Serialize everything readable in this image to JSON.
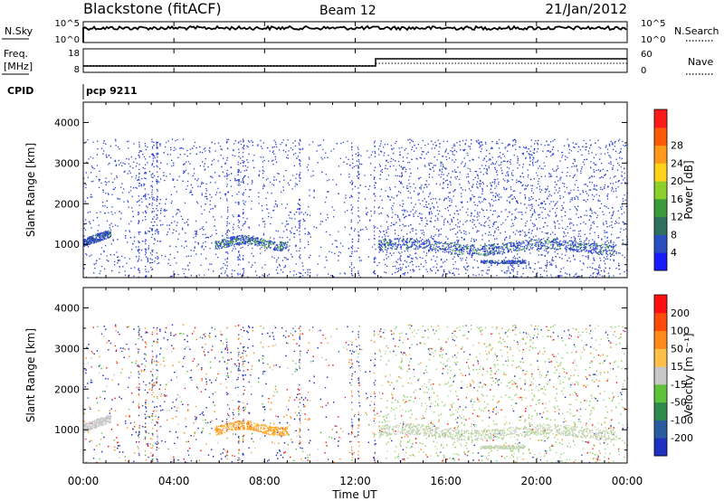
{
  "header": {
    "radar": "Blackstone (fitACF)",
    "beam": "Beam 12",
    "date": "21/Jan/2012"
  },
  "sky_panel": {
    "left_label": "N.Sky",
    "left_ticks": [
      "10^5",
      "10^0"
    ],
    "right_label": "N.Search",
    "right_ticks": [
      "10^5",
      "10^0"
    ]
  },
  "freq_panel": {
    "left_label_1": "Freq.",
    "left_label_2": "[MHz]",
    "left_ticks": [
      "18",
      "8"
    ],
    "right_label": "Nave",
    "right_ticks": [
      "60",
      "0"
    ]
  },
  "cpid": {
    "label": "CPID",
    "value": "pcp 9211"
  },
  "chart_data": [
    {
      "type": "heatmap",
      "panel": "power",
      "ylabel": "Slant Range [km]",
      "ylim": [
        180,
        4500
      ],
      "yticks": [
        "1000",
        "2000",
        "3000",
        "4000"
      ],
      "colorbar": {
        "label": "Power [dB]",
        "ticks": [
          "4",
          "8",
          "12",
          "16",
          "20",
          "24",
          "28"
        ],
        "colors": [
          "#1a1aff",
          "#2a4fc0",
          "#2e7060",
          "#3b9a3b",
          "#8ccf2a",
          "#ffd21a",
          "#ff9a1a",
          "#ff5a0a",
          "#ff1a1a"
        ]
      }
    },
    {
      "type": "heatmap",
      "panel": "velocity",
      "ylabel": "Slant Range [km]",
      "ylim": [
        180,
        4500
      ],
      "yticks": [
        "1000",
        "2000",
        "3000",
        "4000"
      ],
      "colorbar": {
        "label": "Velocity [m s⁻¹]",
        "ticks": [
          "200",
          "100",
          "50",
          "15",
          "-15",
          "-50",
          "-100",
          "-200"
        ],
        "colors": [
          "#2030c0",
          "#2a5aa0",
          "#2e8a4a",
          "#5ec23a",
          "#c8c8c8",
          "#ffc04a",
          "#ff8a1a",
          "#ff4a0a",
          "#ff1010"
        ]
      }
    }
  ],
  "xaxis": {
    "label": "Time UT",
    "ticks": [
      "00:00",
      "04:00",
      "08:00",
      "12:00",
      "16:00",
      "20:00",
      "00:00"
    ]
  }
}
